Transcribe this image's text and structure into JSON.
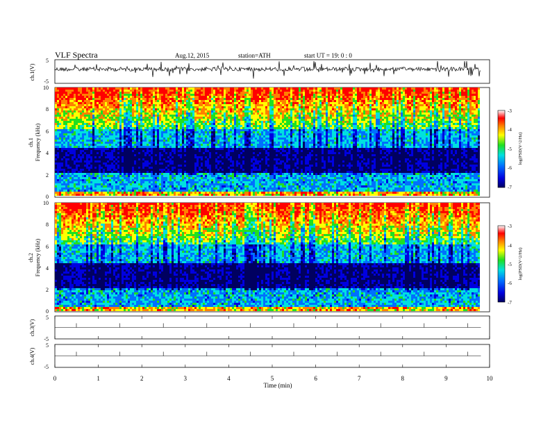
{
  "header": {
    "title": "VLF  Spectra",
    "date": "Aug.12, 2015",
    "station": "station=ATH",
    "start": "start  UT =   19: 0  : 0"
  },
  "chart_data": [
    {
      "type": "line",
      "panel": "ch1-waveform",
      "ylabel": "ch.1(V)",
      "ylim": [
        -5,
        5
      ],
      "yticks": [
        "5",
        "-5"
      ],
      "xlim": [
        0,
        10
      ],
      "color": "#000000"
    },
    {
      "type": "heatmap",
      "panel": "ch1-spectrogram",
      "ylabel_top": "ch.1",
      "ylabel": "Frequency  (kHz)",
      "ylim": [
        0,
        10
      ],
      "yticks": [
        "10",
        "8",
        "6",
        "4",
        "2",
        "0"
      ],
      "xlim": [
        0,
        9.8
      ],
      "colorbar": {
        "label": "log(PSD(V^2/Hz)",
        "ticks": [
          "-3",
          "-4",
          "-5",
          "-6",
          "-7"
        ],
        "range": [
          -7,
          -3
        ]
      }
    },
    {
      "type": "heatmap",
      "panel": "ch2-spectrogram",
      "ylabel_top": "ch.2",
      "ylabel": "Frequency  (kHz)",
      "ylim": [
        0,
        10
      ],
      "yticks": [
        "10",
        "8",
        "6",
        "4",
        "2",
        "0"
      ],
      "xlim": [
        0,
        9.8
      ],
      "colorbar": {
        "label": "log(PSD(V^2/Hz)",
        "ticks": [
          "-3",
          "-4",
          "-5",
          "-6",
          "-7"
        ],
        "range": [
          -7,
          -3
        ]
      }
    },
    {
      "type": "line",
      "panel": "ch3-waveform",
      "ylabel": "ch.3(V)",
      "ylim": [
        -5,
        5
      ],
      "yticks": [
        "5",
        "-5"
      ],
      "xlim": [
        0,
        10
      ]
    },
    {
      "type": "line",
      "panel": "ch4-waveform",
      "ylabel": "ch.4(V)",
      "ylim": [
        -5,
        5
      ],
      "yticks": [
        "5",
        "-5"
      ],
      "xlim": [
        0,
        10
      ]
    }
  ],
  "xaxis": {
    "label": "Time  (min)",
    "ticks": [
      "0",
      "1",
      "2",
      "3",
      "4",
      "5",
      "6",
      "7",
      "8",
      "9",
      "10"
    ]
  },
  "colors": {
    "scale": [
      "#000060",
      "#0000e0",
      "#0070ff",
      "#00e0e0",
      "#20e020",
      "#ffff00",
      "#ff8000",
      "#ff0000",
      "#ffffff"
    ]
  }
}
